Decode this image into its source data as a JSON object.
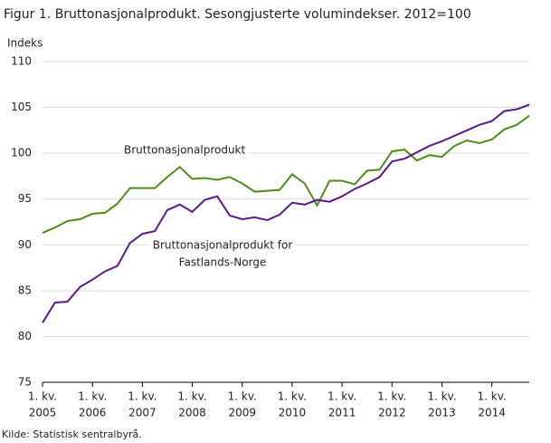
{
  "chart_data": {
    "type": "line",
    "title": "Figur 1. Bruttonasjonalprodukt. Sesongjusterte volumindekser. 2012=100",
    "y_label": "Indeks",
    "source": "Kilde: Statistisk sentralbyrå.",
    "categories": [
      [
        "1. kv.",
        "2005"
      ],
      null,
      null,
      null,
      [
        "1. kv.",
        "2006"
      ],
      null,
      null,
      null,
      [
        "1. kv.",
        "2007"
      ],
      null,
      null,
      null,
      [
        "1. kv.",
        "2008"
      ],
      null,
      null,
      null,
      [
        "1. kv.",
        "2009"
      ],
      null,
      null,
      null,
      [
        "1. kv.",
        "2010"
      ],
      null,
      null,
      null,
      [
        "1. kv.",
        "2011"
      ],
      null,
      null,
      null,
      [
        "1. kv.",
        "2012"
      ],
      null,
      null,
      null,
      [
        "1. kv.",
        "2013"
      ],
      null,
      null,
      null,
      [
        "1. kv.",
        "2014"
      ],
      null,
      null,
      null
    ],
    "series": [
      {
        "name": [
          "Bruttonasjonalprodukt"
        ],
        "color": "#4e8c1c",
        "values": [
          91.3,
          91.9,
          92.6,
          92.8,
          93.4,
          93.5,
          94.5,
          96.2,
          96.2,
          96.2,
          97.4,
          98.5,
          97.2,
          97.3,
          97.1,
          97.4,
          96.7,
          95.8,
          95.9,
          96.0,
          97.7,
          96.7,
          94.3,
          97.0,
          97.0,
          96.6,
          98.1,
          98.2,
          100.2,
          100.4,
          99.2,
          99.8,
          99.6,
          100.8,
          101.4,
          101.1,
          101.5,
          102.6,
          103.1,
          104.1
        ]
      },
      {
        "name": [
          "Bruttonasjonalprodukt  for",
          "Fastlands-Norge"
        ],
        "color": "#5b1a87",
        "values": [
          81.5,
          83.7,
          83.8,
          85.4,
          86.2,
          87.1,
          87.7,
          90.2,
          91.2,
          91.5,
          93.8,
          94.4,
          93.6,
          94.9,
          95.3,
          93.2,
          92.8,
          93.0,
          92.7,
          93.3,
          94.6,
          94.4,
          94.9,
          94.7,
          95.3,
          96.1,
          96.7,
          97.4,
          99.1,
          99.4,
          100.1,
          100.8,
          101.3,
          101.9,
          102.5,
          103.1,
          103.5,
          104.6,
          104.8,
          105.3
        ]
      }
    ],
    "ylim": [
      75,
      110
    ],
    "yticks": [
      75,
      80,
      85,
      90,
      95,
      100,
      105,
      110
    ],
    "grid": true
  }
}
